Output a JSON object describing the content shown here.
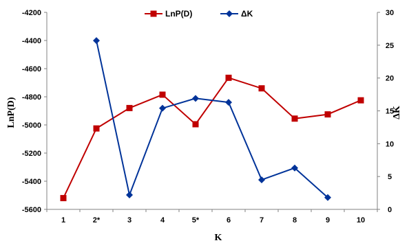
{
  "chart_data": {
    "type": "line",
    "categories": [
      "1",
      "2*",
      "3",
      "4",
      "5*",
      "6",
      "7",
      "8",
      "9",
      "10"
    ],
    "xlabel": "K",
    "ylabel_left": "LnP(D)",
    "ylabel_right": "ΔK",
    "ylim_left": [
      -5600,
      -4200
    ],
    "yticks_left": [
      -5600,
      -5400,
      -5200,
      -5000,
      -4800,
      -4600,
      -4400,
      -4200
    ],
    "ylim_right": [
      0,
      30
    ],
    "yticks_right": [
      0,
      5,
      10,
      15,
      20,
      25,
      30
    ],
    "grid": false,
    "legend_position": "top",
    "series": [
      {
        "name": "LnP(D)",
        "axis": "left",
        "color": "#c00000",
        "marker": "square",
        "values": [
          -5520,
          -5025,
          -4880,
          -4785,
          -4995,
          -4665,
          -4740,
          -4955,
          -4925,
          -4825
        ]
      },
      {
        "name": "ΔK",
        "axis": "right",
        "color": "#003399",
        "marker": "diamond",
        "values": [
          null,
          25.7,
          2.2,
          15.4,
          16.9,
          16.3,
          4.5,
          6.3,
          1.8,
          null
        ]
      }
    ]
  }
}
